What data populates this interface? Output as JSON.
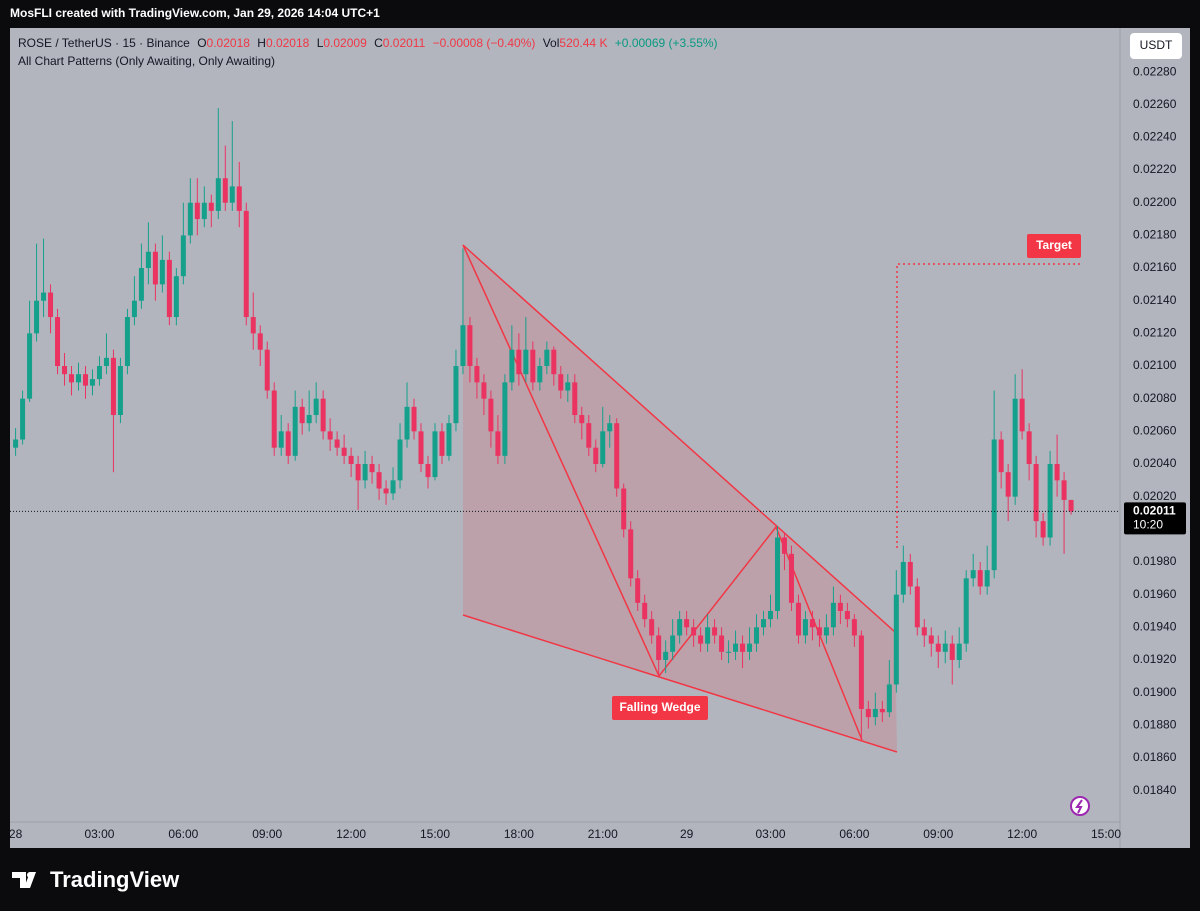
{
  "top_bar": "MosFLI created with TradingView.com, Jan 29, 2026 14:04 UTC+1",
  "footer_brand": "TradingView",
  "chart_data": {
    "type": "candlestick",
    "legend": {
      "symbol": "ROSE / TetherUS · 15 · Binance",
      "ohlc": [
        {
          "label": "O",
          "value": "0.02018"
        },
        {
          "label": "H",
          "value": "0.02018"
        },
        {
          "label": "L",
          "value": "0.02009"
        },
        {
          "label": "C",
          "value": "0.02011"
        }
      ],
      "change": "−0.00008 (−0.40%)",
      "volume_label": "Vol",
      "volume": "520.44 K",
      "volume_change": "+0.00069 (+3.55%)",
      "indicator": "All Chart Patterns (Only Awaiting, Only Awaiting)"
    },
    "currency": "USDT",
    "last_price_label": "0.02011",
    "countdown": "10:20",
    "annotations": {
      "pattern": "Falling Wedge",
      "target": "Target"
    },
    "up_color": "#15a08c",
    "down_color": "#ea3360",
    "grid": false,
    "xlim": [
      -0.2,
      39.5
    ],
    "xticks": [
      {
        "value": 0,
        "label": "28"
      },
      {
        "value": 3,
        "label": "03:00"
      },
      {
        "value": 6,
        "label": "06:00"
      },
      {
        "value": 9,
        "label": "09:00"
      },
      {
        "value": 12,
        "label": "12:00"
      },
      {
        "value": 15,
        "label": "15:00"
      },
      {
        "value": 18,
        "label": "18:00"
      },
      {
        "value": 21,
        "label": "21:00"
      },
      {
        "value": 24,
        "label": "29"
      },
      {
        "value": 27,
        "label": "03:00"
      },
      {
        "value": 30,
        "label": "06:00"
      },
      {
        "value": 33,
        "label": "09:00"
      },
      {
        "value": 36,
        "label": "12:00"
      },
      {
        "value": 39,
        "label": "15:00"
      }
    ],
    "ylim": [
      0.01822,
      0.02307
    ],
    "yticks": [
      {
        "value": 0.0228,
        "label": "0.02280"
      },
      {
        "value": 0.0226,
        "label": "0.02260"
      },
      {
        "value": 0.0224,
        "label": "0.02240"
      },
      {
        "value": 0.0222,
        "label": "0.02220"
      },
      {
        "value": 0.022,
        "label": "0.02200"
      },
      {
        "value": 0.0218,
        "label": "0.02180"
      },
      {
        "value": 0.0216,
        "label": "0.02160"
      },
      {
        "value": 0.0214,
        "label": "0.02140"
      },
      {
        "value": 0.0212,
        "label": "0.02120"
      },
      {
        "value": 0.021,
        "label": "0.02100"
      },
      {
        "value": 0.0208,
        "label": "0.02080"
      },
      {
        "value": 0.0206,
        "label": "0.02060"
      },
      {
        "value": 0.0204,
        "label": "0.02040"
      },
      {
        "value": 0.0202,
        "label": "0.02020"
      },
      {
        "value": 0.02,
        "label": "0.02000"
      },
      {
        "value": 0.0198,
        "label": "0.01980"
      },
      {
        "value": 0.0196,
        "label": "0.01960"
      },
      {
        "value": 0.0194,
        "label": "0.01940"
      },
      {
        "value": 0.0192,
        "label": "0.01920"
      },
      {
        "value": 0.019,
        "label": "0.01900"
      },
      {
        "value": 0.0188,
        "label": "0.01880"
      },
      {
        "value": 0.0186,
        "label": "0.01860"
      },
      {
        "value": 0.0184,
        "label": "0.01840"
      }
    ],
    "x": [
      0,
      0.25,
      0.5,
      0.75,
      1,
      1.25,
      1.5,
      1.75,
      2,
      2.25,
      2.5,
      2.75,
      3,
      3.25,
      3.5,
      3.75,
      4,
      4.25,
      4.5,
      4.75,
      5,
      5.25,
      5.5,
      5.75,
      6,
      6.25,
      6.5,
      6.75,
      7,
      7.25,
      7.5,
      7.75,
      8,
      8.25,
      8.5,
      8.75,
      9,
      9.25,
      9.5,
      9.75,
      10,
      10.25,
      10.5,
      10.75,
      11,
      11.25,
      11.5,
      11.75,
      12,
      12.25,
      12.5,
      12.75,
      13,
      13.25,
      13.5,
      13.75,
      14,
      14.25,
      14.5,
      14.75,
      15,
      15.25,
      15.5,
      15.75,
      16,
      16.25,
      16.5,
      16.75,
      17,
      17.25,
      17.5,
      17.75,
      18,
      18.25,
      18.5,
      18.75,
      19,
      19.25,
      19.5,
      19.75,
      20,
      20.25,
      20.5,
      20.75,
      21,
      21.25,
      21.5,
      21.75,
      22,
      22.25,
      22.5,
      22.75,
      23,
      23.25,
      23.5,
      23.75,
      24,
      24.25,
      24.5,
      24.75,
      25,
      25.25,
      25.5,
      25.75,
      26,
      26.25,
      26.5,
      26.75,
      27,
      27.25,
      27.5,
      27.75,
      28,
      28.25,
      28.5,
      28.75,
      29,
      29.25,
      29.5,
      29.75,
      30,
      30.25,
      30.5,
      30.75,
      31,
      31.25,
      31.5,
      31.75,
      32,
      32.25,
      32.5,
      32.75,
      33,
      33.25,
      33.5,
      33.75,
      34,
      34.25,
      34.5,
      34.75,
      35,
      35.25,
      35.5,
      35.75,
      36,
      36.25,
      36.5,
      36.75,
      37,
      37.25,
      37.5,
      37.75
    ],
    "open": [
      0.0205,
      0.02055,
      0.0208,
      0.0212,
      0.0214,
      0.02145,
      0.0213,
      0.021,
      0.02095,
      0.0209,
      0.02095,
      0.02088,
      0.02092,
      0.021,
      0.02105,
      0.0207,
      0.021,
      0.0213,
      0.0214,
      0.0216,
      0.0217,
      0.0215,
      0.02165,
      0.0213,
      0.02155,
      0.0218,
      0.022,
      0.0219,
      0.022,
      0.02195,
      0.02215,
      0.022,
      0.0221,
      0.02195,
      0.0213,
      0.0212,
      0.0211,
      0.02085,
      0.0205,
      0.0206,
      0.02045,
      0.02075,
      0.02065,
      0.0207,
      0.0208,
      0.0206,
      0.02055,
      0.0205,
      0.02045,
      0.0204,
      0.0203,
      0.0204,
      0.02035,
      0.02025,
      0.02022,
      0.0203,
      0.02055,
      0.02075,
      0.0206,
      0.0204,
      0.02032,
      0.0206,
      0.02045,
      0.02065,
      0.021,
      0.02125,
      0.021,
      0.0209,
      0.0208,
      0.0206,
      0.02045,
      0.0209,
      0.0211,
      0.02095,
      0.0211,
      0.0209,
      0.021,
      0.0211,
      0.02095,
      0.02085,
      0.0209,
      0.0207,
      0.02065,
      0.0205,
      0.0204,
      0.0206,
      0.02065,
      0.02025,
      0.02,
      0.0197,
      0.01955,
      0.01945,
      0.01935,
      0.0192,
      0.01925,
      0.01935,
      0.01945,
      0.0194,
      0.01935,
      0.0193,
      0.0194,
      0.01935,
      0.01925,
      0.01925,
      0.0193,
      0.01925,
      0.0193,
      0.0194,
      0.01945,
      0.0195,
      0.01995,
      0.01985,
      0.01955,
      0.01935,
      0.01945,
      0.0194,
      0.01935,
      0.0194,
      0.01955,
      0.0195,
      0.01945,
      0.01935,
      0.0189,
      0.01885,
      0.0189,
      0.01888,
      0.01905,
      0.0196,
      0.0198,
      0.01965,
      0.0194,
      0.01935,
      0.0193,
      0.01925,
      0.0193,
      0.0192,
      0.0193,
      0.0197,
      0.01975,
      0.01965,
      0.01975,
      0.02055,
      0.02035,
      0.0202,
      0.0208,
      0.0206,
      0.0204,
      0.02005,
      0.01995,
      0.0204,
      0.0203,
      0.02018
    ],
    "high": [
      0.02062,
      0.02085,
      0.0214,
      0.02175,
      0.02178,
      0.0215,
      0.02135,
      0.02108,
      0.021,
      0.02102,
      0.021,
      0.02098,
      0.02106,
      0.0212,
      0.0211,
      0.02105,
      0.02135,
      0.02155,
      0.02175,
      0.02188,
      0.02175,
      0.0218,
      0.0217,
      0.0216,
      0.022,
      0.02215,
      0.02215,
      0.0221,
      0.02205,
      0.02258,
      0.02235,
      0.0225,
      0.02225,
      0.022,
      0.02145,
      0.02125,
      0.02115,
      0.0209,
      0.0207,
      0.02065,
      0.02085,
      0.0208,
      0.02085,
      0.0209,
      0.02085,
      0.02068,
      0.0206,
      0.02058,
      0.0205,
      0.02045,
      0.02048,
      0.02045,
      0.0204,
      0.0203,
      0.02038,
      0.02065,
      0.0209,
      0.0208,
      0.02065,
      0.02045,
      0.02065,
      0.02065,
      0.0207,
      0.0211,
      0.02172,
      0.0213,
      0.02105,
      0.02095,
      0.02085,
      0.0207,
      0.02095,
      0.02125,
      0.0212,
      0.0213,
      0.02115,
      0.02105,
      0.02115,
      0.02112,
      0.021,
      0.02095,
      0.02095,
      0.02075,
      0.0207,
      0.02055,
      0.02075,
      0.0207,
      0.02068,
      0.02028,
      0.02005,
      0.01975,
      0.0196,
      0.0195,
      0.0194,
      0.01932,
      0.01945,
      0.0195,
      0.0195,
      0.01945,
      0.0194,
      0.01948,
      0.01945,
      0.0194,
      0.01932,
      0.01938,
      0.01935,
      0.0194,
      0.01948,
      0.0195,
      0.0196,
      0.02002,
      0.01998,
      0.0199,
      0.0196,
      0.0195,
      0.0195,
      0.01945,
      0.01948,
      0.01965,
      0.0196,
      0.01955,
      0.01948,
      0.01938,
      0.01895,
      0.019,
      0.01895,
      0.0192,
      0.01975,
      0.0199,
      0.01985,
      0.0197,
      0.01945,
      0.0194,
      0.01935,
      0.01938,
      0.01935,
      0.0194,
      0.01975,
      0.01985,
      0.0198,
      0.0199,
      0.02085,
      0.0206,
      0.0204,
      0.02095,
      0.02098,
      0.02065,
      0.02045,
      0.0201,
      0.02048,
      0.02058,
      0.02035,
      0.02018
    ],
    "low": [
      0.02045,
      0.02052,
      0.02078,
      0.02115,
      0.0213,
      0.0212,
      0.02095,
      0.02088,
      0.02082,
      0.02085,
      0.0208,
      0.02082,
      0.02088,
      0.02095,
      0.02035,
      0.02065,
      0.02095,
      0.02125,
      0.02135,
      0.0215,
      0.0214,
      0.02145,
      0.02125,
      0.02125,
      0.0215,
      0.02175,
      0.0218,
      0.02185,
      0.02185,
      0.0219,
      0.02195,
      0.02195,
      0.02185,
      0.02125,
      0.0211,
      0.021,
      0.0208,
      0.02045,
      0.02045,
      0.0204,
      0.02042,
      0.02058,
      0.0206,
      0.02065,
      0.02055,
      0.02048,
      0.02045,
      0.0204,
      0.02032,
      0.02012,
      0.02025,
      0.02028,
      0.02018,
      0.02015,
      0.02018,
      0.02025,
      0.0205,
      0.02055,
      0.02035,
      0.02025,
      0.0203,
      0.0204,
      0.02042,
      0.0206,
      0.02095,
      0.0209,
      0.0208,
      0.0207,
      0.0205,
      0.0204,
      0.0204,
      0.02085,
      0.02088,
      0.0209,
      0.02085,
      0.02085,
      0.02095,
      0.02088,
      0.0208,
      0.02078,
      0.02065,
      0.02055,
      0.02045,
      0.02035,
      0.02038,
      0.0205,
      0.0202,
      0.01995,
      0.01965,
      0.0195,
      0.0194,
      0.0193,
      0.0191,
      0.01912,
      0.0192,
      0.0193,
      0.01935,
      0.01928,
      0.01925,
      0.01925,
      0.0193,
      0.0192,
      0.01918,
      0.0192,
      0.01915,
      0.0192,
      0.01925,
      0.01935,
      0.0194,
      0.01945,
      0.01975,
      0.0195,
      0.0193,
      0.0193,
      0.01932,
      0.01928,
      0.0193,
      0.01935,
      0.01942,
      0.0194,
      0.01928,
      0.01872,
      0.01878,
      0.0188,
      0.01882,
      0.01885,
      0.019,
      0.01955,
      0.0196,
      0.01935,
      0.01928,
      0.01922,
      0.01915,
      0.01918,
      0.01905,
      0.01915,
      0.01925,
      0.01965,
      0.0196,
      0.0196,
      0.0197,
      0.02025,
      0.02005,
      0.02015,
      0.02055,
      0.0203,
      0.01995,
      0.0199,
      0.0199,
      0.0202,
      0.01985,
      0.02009
    ],
    "close": [
      0.02055,
      0.0208,
      0.0212,
      0.0214,
      0.02145,
      0.0213,
      0.021,
      0.02095,
      0.0209,
      0.02095,
      0.02088,
      0.02092,
      0.021,
      0.02105,
      0.0207,
      0.021,
      0.0213,
      0.0214,
      0.0216,
      0.0217,
      0.0215,
      0.02165,
      0.0213,
      0.02155,
      0.0218,
      0.022,
      0.0219,
      0.022,
      0.02195,
      0.02215,
      0.022,
      0.0221,
      0.02195,
      0.0213,
      0.0212,
      0.0211,
      0.02085,
      0.0205,
      0.0206,
      0.02045,
      0.02075,
      0.02065,
      0.0207,
      0.0208,
      0.0206,
      0.02055,
      0.0205,
      0.02045,
      0.0204,
      0.0203,
      0.0204,
      0.02035,
      0.02025,
      0.02022,
      0.0203,
      0.02055,
      0.02075,
      0.0206,
      0.0204,
      0.02032,
      0.0206,
      0.02045,
      0.02065,
      0.021,
      0.02125,
      0.021,
      0.0209,
      0.0208,
      0.0206,
      0.02045,
      0.0209,
      0.0211,
      0.02095,
      0.0211,
      0.0209,
      0.021,
      0.0211,
      0.02095,
      0.02085,
      0.0209,
      0.0207,
      0.02065,
      0.0205,
      0.0204,
      0.0206,
      0.02065,
      0.02025,
      0.02,
      0.0197,
      0.01955,
      0.01945,
      0.01935,
      0.0192,
      0.01925,
      0.01935,
      0.01945,
      0.0194,
      0.01935,
      0.0193,
      0.0194,
      0.01935,
      0.01925,
      0.01925,
      0.0193,
      0.01925,
      0.0193,
      0.0194,
      0.01945,
      0.0195,
      0.01995,
      0.01985,
      0.01955,
      0.01935,
      0.01945,
      0.0194,
      0.01935,
      0.0194,
      0.01955,
      0.0195,
      0.01945,
      0.01935,
      0.0189,
      0.01885,
      0.0189,
      0.01888,
      0.01905,
      0.0196,
      0.0198,
      0.01965,
      0.0194,
      0.01935,
      0.0193,
      0.01925,
      0.0193,
      0.0192,
      0.0193,
      0.0197,
      0.01975,
      0.01965,
      0.01975,
      0.02055,
      0.02035,
      0.0202,
      0.0208,
      0.0206,
      0.0204,
      0.02005,
      0.01995,
      0.0204,
      0.0203,
      0.02018,
      0.02011
    ]
  }
}
